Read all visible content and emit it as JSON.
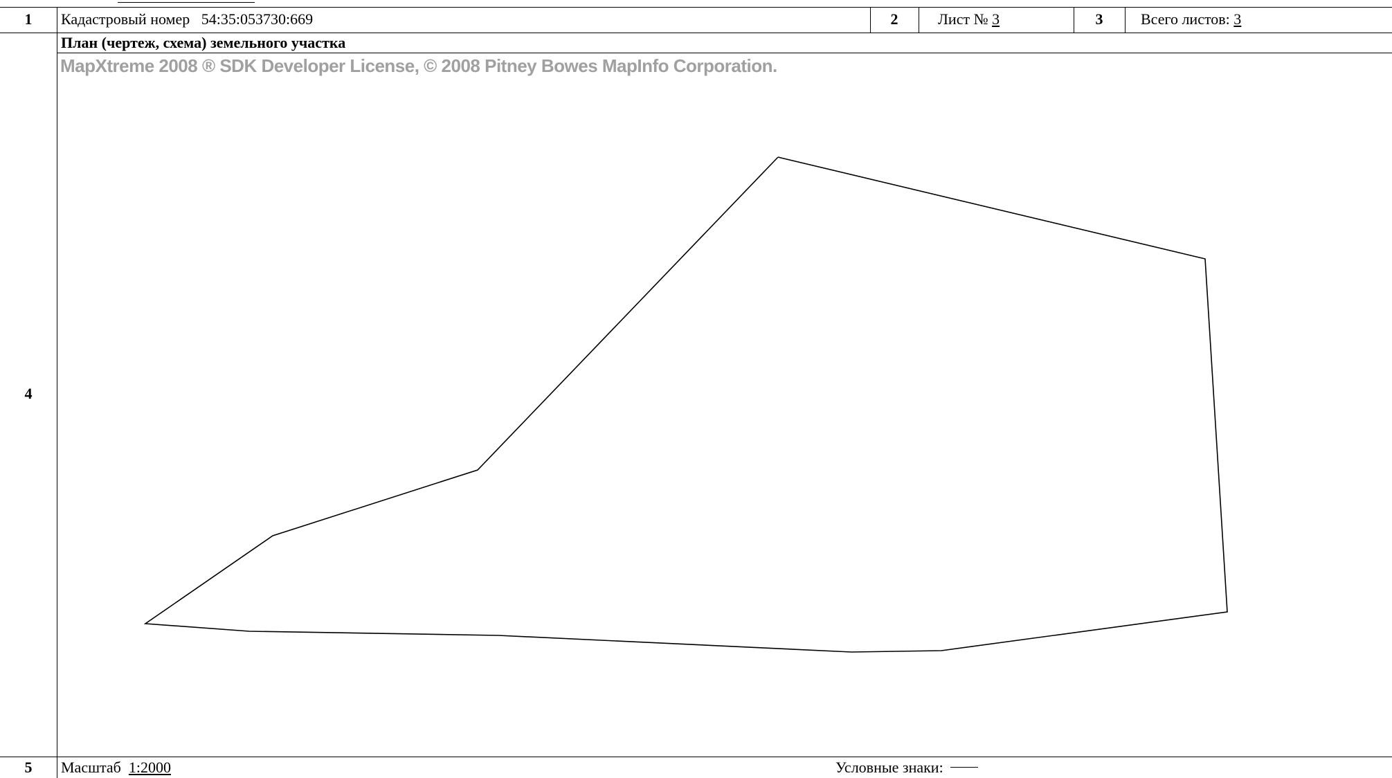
{
  "header": {
    "cell1_num": "1",
    "cadastral_label": "Кадастровый номер",
    "cadastral_number": "54:35:053730:669",
    "cell2_num": "2",
    "sheet_label": "Лист №",
    "sheet_number": "3",
    "cell3_num": "3",
    "total_label": "Всего листов:",
    "total_number": "3"
  },
  "plan": {
    "row_num": "4",
    "title": "План (чертеж, схема) земельного участка",
    "watermark": "MapXtreme 2008 ® SDK Developer License, © 2008 Pitney Bowes MapInfo Corporation."
  },
  "footer": {
    "row_num": "5",
    "scale_label": "Масштаб",
    "scale_value": "1:2000",
    "legend_label": "Условные знаки:"
  },
  "colors": {
    "line": "#000000",
    "watermark": "#a0a0a0"
  }
}
